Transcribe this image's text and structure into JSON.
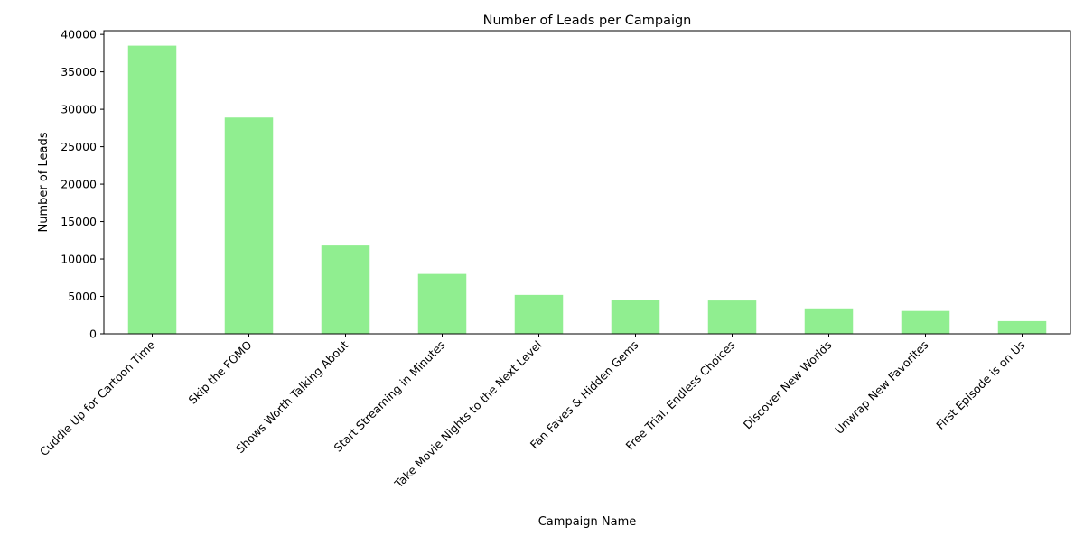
{
  "chart_data": {
    "type": "bar",
    "title": "Number of Leads per Campaign",
    "xlabel": "Campaign Name",
    "ylabel": "Number of Leads",
    "categories": [
      "Cuddle Up for Cartoon Time",
      "Skip the FOMO",
      "Shows Worth Talking About",
      "Start Streaming in Minutes",
      "Take Movie Nights to the Next Level",
      "Fan Faves & Hidden Gems",
      "Free Trial, Endless Choices",
      "Discover New Worlds",
      "Unwrap New Favorites",
      "First Episode is on Us"
    ],
    "values": [
      38500,
      28900,
      11800,
      8000,
      5200,
      4500,
      4450,
      3400,
      3050,
      1700
    ],
    "ylim": [
      0,
      40500
    ],
    "yticks": [
      0,
      5000,
      10000,
      15000,
      20000,
      25000,
      30000,
      35000,
      40000
    ],
    "grid": false,
    "legend": "none",
    "bar_color": "#90ee90"
  }
}
